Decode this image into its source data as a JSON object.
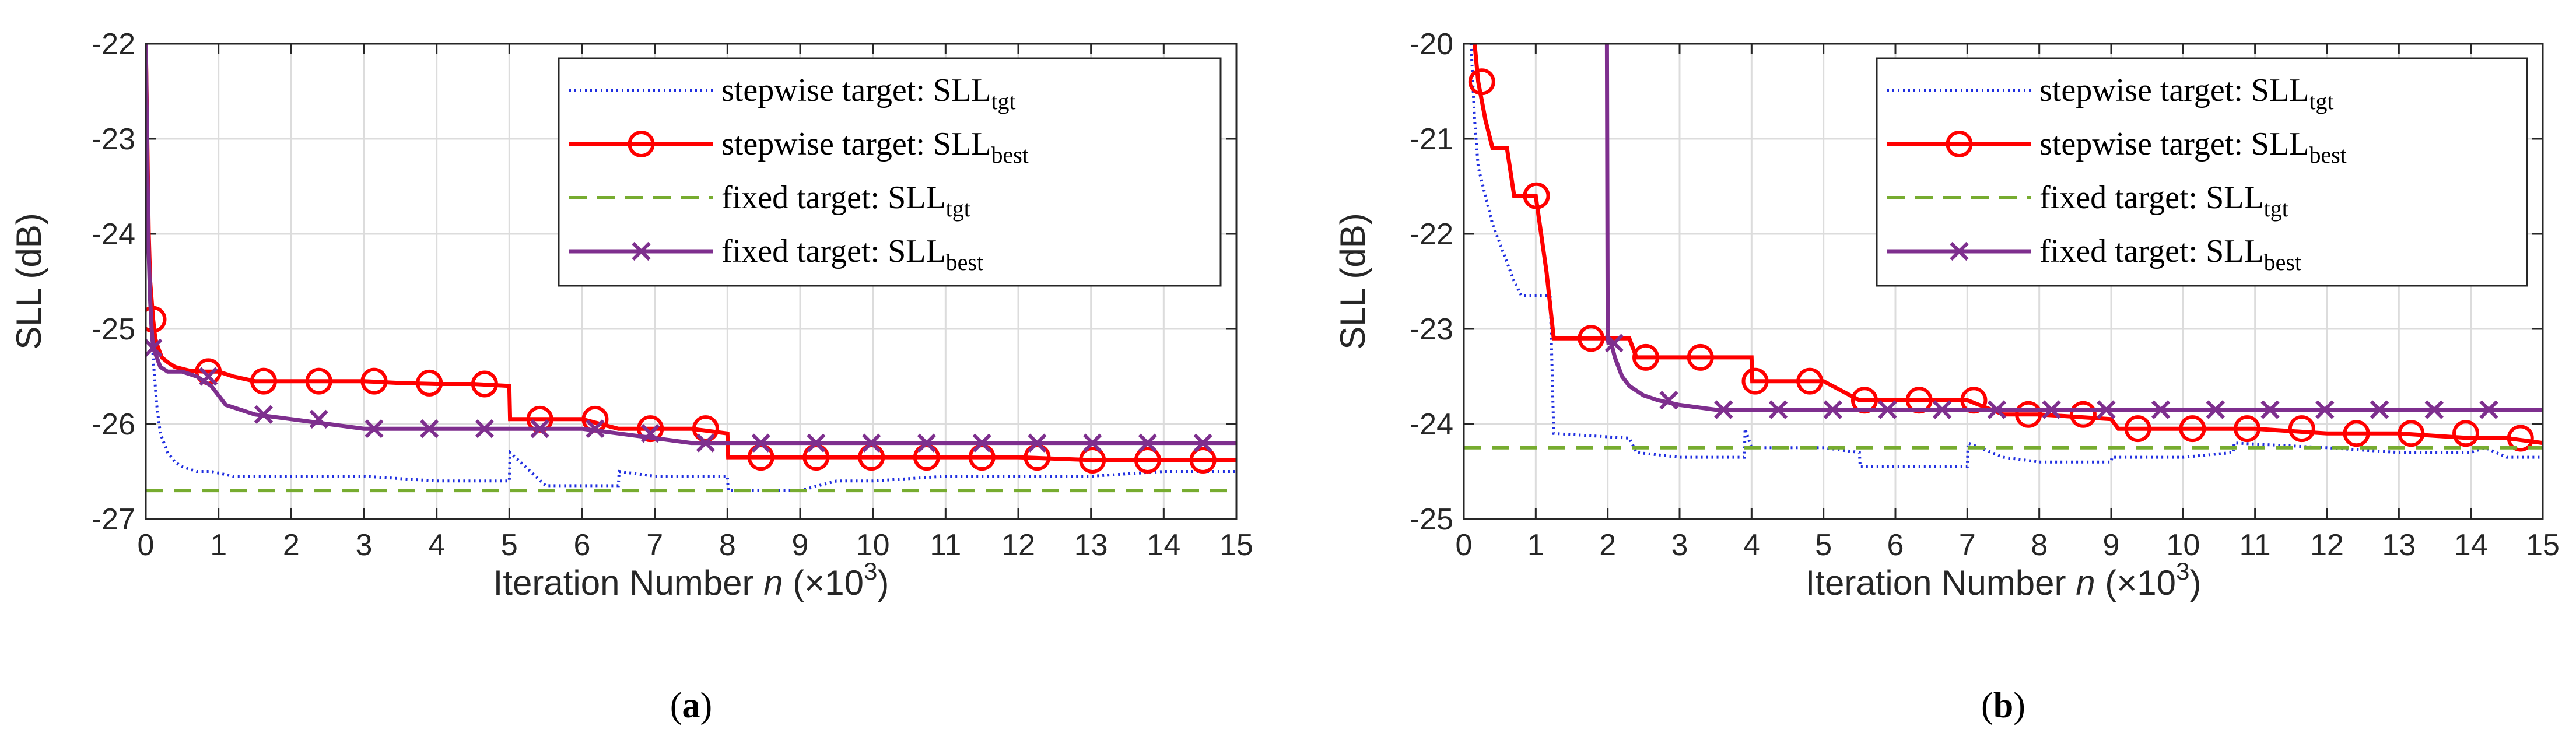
{
  "chart_data": [
    {
      "type": "line",
      "panel_label": "a",
      "xlabel": "Iteration Number",
      "xlabel_var": "n",
      "xlabel_unit": "(×10",
      "xlabel_exp": "3",
      "xlabel_close": ")",
      "ylabel": "SLL (dB)",
      "xlim": [
        0,
        15
      ],
      "ylim": [
        -27,
        -22
      ],
      "xticks": [
        "0",
        "1",
        "2",
        "3",
        "4",
        "5",
        "6",
        "7",
        "8",
        "9",
        "10",
        "11",
        "12",
        "13",
        "14",
        "15"
      ],
      "yticks": [
        "-22",
        "-23",
        "-24",
        "-25",
        "-26",
        "-27"
      ],
      "grid": true,
      "legend_position": "top-right",
      "series": [
        {
          "name": "stepwise target: SLL",
          "sub": "tgt",
          "color": "#1f2ee0",
          "style": "dotted",
          "marker": "none",
          "x": [
            0,
            0.03,
            0.06,
            0.1,
            0.15,
            0.2,
            0.3,
            0.4,
            0.5,
            0.7,
            0.9,
            1.2,
            1.5,
            2,
            3,
            4,
            5,
            5.01,
            5.5,
            6,
            6.5,
            6.51,
            7,
            7.5,
            8,
            8.01,
            9,
            9.5,
            10,
            11,
            12,
            13,
            14,
            15
          ],
          "y": [
            -22,
            -23.5,
            -24.6,
            -25.3,
            -25.8,
            -26.1,
            -26.3,
            -26.4,
            -26.45,
            -26.5,
            -26.5,
            -26.55,
            -26.55,
            -26.55,
            -26.55,
            -26.6,
            -26.6,
            -26.3,
            -26.65,
            -26.65,
            -26.65,
            -26.5,
            -26.55,
            -26.55,
            -26.55,
            -26.7,
            -26.7,
            -26.6,
            -26.6,
            -26.55,
            -26.55,
            -26.55,
            -26.5,
            -26.5
          ]
        },
        {
          "name": "stepwise target: SLL",
          "sub": "best",
          "color": "#ff0000",
          "style": "solid",
          "marker": "circle",
          "x": [
            0,
            0.02,
            0.04,
            0.06,
            0.08,
            0.1,
            0.13,
            0.17,
            0.22,
            0.3,
            0.4,
            0.5,
            0.6,
            0.8,
            1,
            1.2,
            1.5,
            2,
            2.5,
            3,
            3.5,
            4,
            4.5,
            5,
            5.01,
            6,
            6.5,
            7,
            7.5,
            8,
            8.01,
            9,
            10,
            11,
            12,
            13,
            14,
            15
          ],
          "y": [
            -22,
            -23,
            -24,
            -24.5,
            -24.7,
            -24.9,
            -25.1,
            -25.2,
            -25.3,
            -25.35,
            -25.4,
            -25.42,
            -25.44,
            -25.45,
            -25.45,
            -25.5,
            -25.55,
            -25.55,
            -25.55,
            -25.55,
            -25.57,
            -25.58,
            -25.58,
            -25.6,
            -25.95,
            -25.95,
            -26.05,
            -26.05,
            -26.05,
            -26.1,
            -26.35,
            -26.35,
            -26.35,
            -26.35,
            -26.35,
            -26.38,
            -26.38,
            -26.38
          ]
        },
        {
          "name": "fixed target: SLL",
          "sub": "tgt",
          "color": "#77ac30",
          "style": "dashed",
          "marker": "none",
          "x": [
            0,
            15
          ],
          "y": [
            -26.7,
            -26.7
          ]
        },
        {
          "name": "fixed target: SLL",
          "sub": "best",
          "color": "#7e2f8e",
          "style": "solid",
          "marker": "x",
          "x": [
            0,
            0.02,
            0.04,
            0.06,
            0.08,
            0.1,
            0.15,
            0.2,
            0.3,
            0.4,
            0.5,
            0.7,
            0.9,
            1,
            1.1,
            1.3,
            1.5,
            2,
            2.5,
            3,
            4,
            5,
            6,
            6.5,
            7,
            7.5,
            8,
            9,
            10,
            11,
            12,
            13,
            14,
            15
          ],
          "y": [
            -22,
            -23.2,
            -24.2,
            -24.7,
            -25,
            -25.2,
            -25.3,
            -25.4,
            -25.45,
            -25.45,
            -25.45,
            -25.5,
            -25.6,
            -25.7,
            -25.8,
            -25.85,
            -25.9,
            -25.95,
            -26,
            -26.05,
            -26.05,
            -26.05,
            -26.05,
            -26.1,
            -26.15,
            -26.2,
            -26.2,
            -26.2,
            -26.2,
            -26.2,
            -26.2,
            -26.2,
            -26.2,
            -26.2
          ]
        }
      ]
    },
    {
      "type": "line",
      "panel_label": "b",
      "xlabel": "Iteration Number",
      "xlabel_var": "n",
      "xlabel_unit": "(×10",
      "xlabel_exp": "3",
      "xlabel_close": ")",
      "ylabel": "SLL (dB)",
      "xlim": [
        0,
        15
      ],
      "ylim": [
        -25,
        -20
      ],
      "xticks": [
        "0",
        "1",
        "2",
        "3",
        "4",
        "5",
        "6",
        "7",
        "8",
        "9",
        "10",
        "11",
        "12",
        "13",
        "14",
        "15"
      ],
      "yticks": [
        "-20",
        "-21",
        "-22",
        "-23",
        "-24",
        "-25"
      ],
      "grid": true,
      "legend_position": "top-right",
      "series": [
        {
          "name": "stepwise target: SLL",
          "sub": "tgt",
          "color": "#1f2ee0",
          "style": "dotted",
          "marker": "none",
          "x": [
            0.1,
            0.15,
            0.2,
            0.3,
            0.4,
            0.5,
            0.6,
            0.7,
            0.8,
            1.2,
            1.25,
            2.3,
            2.4,
            3,
            3.9,
            3.91,
            4,
            5,
            5.5,
            5.51,
            7,
            7.01,
            7.5,
            8,
            9,
            9.01,
            10,
            10.7,
            10.71,
            12,
            13,
            14,
            14.2,
            14.5,
            15
          ],
          "y": [
            -20,
            -20.8,
            -21.3,
            -21.6,
            -21.9,
            -22.1,
            -22.3,
            -22.5,
            -22.65,
            -22.65,
            -24.1,
            -24.15,
            -24.3,
            -24.35,
            -24.35,
            -24.05,
            -24.25,
            -24.25,
            -24.3,
            -24.45,
            -24.45,
            -24.2,
            -24.35,
            -24.4,
            -24.4,
            -24.35,
            -24.35,
            -24.3,
            -24.2,
            -24.25,
            -24.3,
            -24.3,
            -24.25,
            -24.35,
            -24.35
          ]
        },
        {
          "name": "stepwise target: SLL",
          "sub": "best",
          "color": "#ff0000",
          "style": "solid",
          "marker": "circle",
          "x": [
            0.15,
            0.2,
            0.3,
            0.4,
            0.6,
            0.7,
            1,
            1.15,
            1.25,
            1.5,
            2,
            2.3,
            2.4,
            3,
            4,
            4.01,
            5,
            5.5,
            6,
            7,
            7.5,
            8,
            9,
            9.1,
            10,
            11,
            12,
            13,
            14,
            14.5,
            15
          ],
          "y": [
            -20,
            -20.4,
            -20.8,
            -21.1,
            -21.1,
            -21.6,
            -21.6,
            -22.4,
            -23.1,
            -23.1,
            -23.1,
            -23.1,
            -23.3,
            -23.3,
            -23.3,
            -23.55,
            -23.55,
            -23.75,
            -23.75,
            -23.75,
            -23.9,
            -23.9,
            -23.95,
            -24.05,
            -24.05,
            -24.05,
            -24.1,
            -24.1,
            -24.15,
            -24.15,
            -24.2
          ]
        },
        {
          "name": "fixed target: SLL",
          "sub": "tgt",
          "color": "#77ac30",
          "style": "dashed",
          "marker": "none",
          "x": [
            0,
            15
          ],
          "y": [
            -24.25,
            -24.25
          ]
        },
        {
          "name": "fixed target: SLL",
          "sub": "best",
          "color": "#7e2f8e",
          "style": "solid",
          "marker": "x",
          "x": [
            1.99,
            2,
            2.01,
            2.05,
            2.1,
            2.2,
            2.3,
            2.4,
            2.5,
            2.7,
            3,
            3.5,
            4,
            4.5,
            5,
            5.5,
            6,
            7,
            8,
            9,
            10,
            11,
            12,
            13,
            14,
            15
          ],
          "y": [
            -20,
            -23.1,
            -23.15,
            -23.15,
            -23.3,
            -23.5,
            -23.6,
            -23.65,
            -23.7,
            -23.75,
            -23.8,
            -23.85,
            -23.85,
            -23.85,
            -23.85,
            -23.85,
            -23.85,
            -23.85,
            -23.85,
            -23.85,
            -23.85,
            -23.85,
            -23.85,
            -23.85,
            -23.85,
            -23.85
          ]
        }
      ]
    }
  ]
}
